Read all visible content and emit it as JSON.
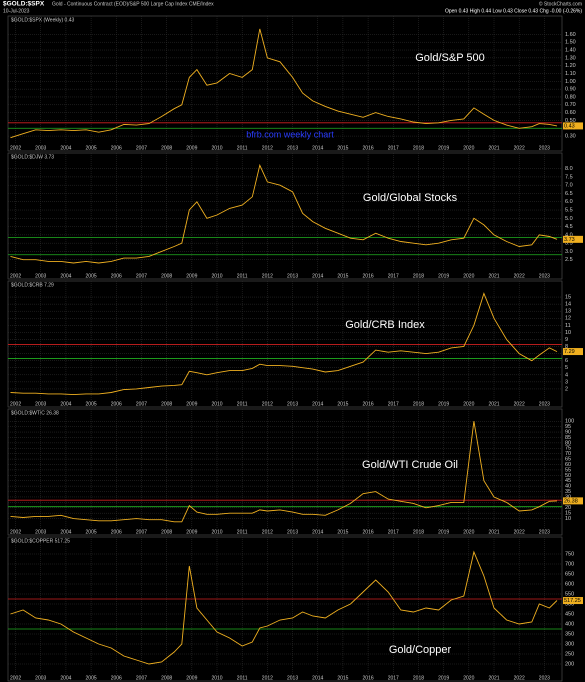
{
  "header": {
    "symbol": "$GOLD:$SPX",
    "description": "Gold - Continuous Contract (EOD)/S&P 500 Large Cap Index  CME/Index",
    "date": "10-Jul-2023",
    "quote": "Open 0.43  High 0.44  Low 0.43  Close 0.43  Chg -0.00 (-0.26%)",
    "source": "© StockCharts.com"
  },
  "chart_data": [
    {
      "type": "line",
      "label": "$GOLD:$SPX (Weekly) 0.43",
      "annotation": "Gold/S&P 500",
      "note": "bfrb.com weekly chart",
      "color": "#f0b020",
      "grid": true,
      "last_value": 0.43,
      "reference_lines": [
        {
          "value": 0.47,
          "color": "#d02020"
        },
        {
          "value": 0.4,
          "color": "#20b020"
        }
      ],
      "x": [
        2001.8,
        2002.3,
        2002.8,
        2003.3,
        2003.8,
        2004.3,
        2004.8,
        2005.3,
        2005.8,
        2006.3,
        2006.8,
        2007.3,
        2007.8,
        2008.3,
        2008.6,
        2008.9,
        2009.2,
        2009.6,
        2010.0,
        2010.5,
        2011.0,
        2011.4,
        2011.7,
        2012.0,
        2012.5,
        2013.0,
        2013.4,
        2013.8,
        2014.3,
        2014.8,
        2015.3,
        2015.8,
        2016.3,
        2016.8,
        2017.3,
        2017.8,
        2018.3,
        2018.8,
        2019.3,
        2019.8,
        2020.2,
        2020.6,
        2021.0,
        2021.5,
        2022.0,
        2022.5,
        2022.8,
        2023.2,
        2023.5
      ],
      "values": [
        0.28,
        0.33,
        0.38,
        0.37,
        0.38,
        0.37,
        0.38,
        0.35,
        0.38,
        0.45,
        0.44,
        0.46,
        0.55,
        0.65,
        0.7,
        1.05,
        1.15,
        0.95,
        0.98,
        1.1,
        1.05,
        1.15,
        1.67,
        1.3,
        1.25,
        1.05,
        0.85,
        0.75,
        0.68,
        0.62,
        0.58,
        0.54,
        0.6,
        0.55,
        0.52,
        0.48,
        0.46,
        0.47,
        0.5,
        0.52,
        0.66,
        0.58,
        0.5,
        0.44,
        0.4,
        0.42,
        0.46,
        0.45,
        0.43
      ],
      "xlim": [
        2001.7,
        2023.7
      ],
      "xticks": [
        2002,
        2003,
        2004,
        2005,
        2006,
        2007,
        2008,
        2009,
        2010,
        2011,
        2012,
        2013,
        2014,
        2015,
        2016,
        2017,
        2018,
        2019,
        2020,
        2021,
        2022,
        2023
      ],
      "ylim": [
        0.25,
        1.72
      ],
      "yticks": [
        {
          "value": 0.3,
          "label": "0.30"
        },
        {
          "value": 0.4,
          "label": "0.40"
        },
        {
          "value": 0.5,
          "label": "0.50"
        },
        {
          "value": 0.6,
          "label": "0.60"
        },
        {
          "value": 0.7,
          "label": "0.70"
        },
        {
          "value": 0.8,
          "label": "0.80"
        },
        {
          "value": 0.9,
          "label": "0.90"
        },
        {
          "value": 1.0,
          "label": "1.00"
        },
        {
          "value": 1.1,
          "label": "1.10"
        },
        {
          "value": 1.2,
          "label": "1.20"
        },
        {
          "value": 1.3,
          "label": "1.30"
        },
        {
          "value": 1.4,
          "label": "1.40"
        },
        {
          "value": 1.5,
          "label": "1.50"
        },
        {
          "value": 1.6,
          "label": "1.60"
        }
      ]
    },
    {
      "type": "line",
      "label": "$GOLD:$DJW 3.73",
      "annotation": "Gold/Global Stocks",
      "color": "#f0b020",
      "grid": true,
      "last_value": 3.73,
      "reference_lines": [
        {
          "value": 3.85,
          "color": "#20b020"
        },
        {
          "value": 2.8,
          "color": "#20b020"
        }
      ],
      "x": [
        2001.8,
        2002.3,
        2002.8,
        2003.3,
        2003.8,
        2004.3,
        2004.8,
        2005.3,
        2005.8,
        2006.3,
        2006.8,
        2007.3,
        2007.8,
        2008.3,
        2008.6,
        2008.9,
        2009.2,
        2009.6,
        2010.0,
        2010.5,
        2011.0,
        2011.4,
        2011.7,
        2012.0,
        2012.5,
        2013.0,
        2013.4,
        2013.8,
        2014.3,
        2014.8,
        2015.3,
        2015.8,
        2016.3,
        2016.8,
        2017.3,
        2017.8,
        2018.3,
        2018.8,
        2019.3,
        2019.8,
        2020.2,
        2020.6,
        2021.0,
        2021.5,
        2022.0,
        2022.5,
        2022.8,
        2023.2,
        2023.5
      ],
      "values": [
        2.7,
        2.5,
        2.5,
        2.4,
        2.4,
        2.3,
        2.4,
        2.3,
        2.4,
        2.6,
        2.6,
        2.7,
        3.0,
        3.3,
        3.5,
        5.5,
        6.0,
        5.0,
        5.2,
        5.6,
        5.8,
        6.3,
        8.2,
        7.2,
        7.0,
        6.6,
        5.3,
        4.8,
        4.4,
        4.1,
        3.8,
        3.7,
        4.1,
        3.8,
        3.6,
        3.5,
        3.4,
        3.5,
        3.7,
        3.8,
        5.0,
        4.6,
        4.0,
        3.6,
        3.3,
        3.4,
        4.0,
        3.9,
        3.73
      ],
      "xlim": [
        2001.7,
        2023.7
      ],
      "xticks": [
        2002,
        2003,
        2004,
        2005,
        2006,
        2007,
        2008,
        2009,
        2010,
        2011,
        2012,
        2013,
        2014,
        2015,
        2016,
        2017,
        2018,
        2019,
        2020,
        2021,
        2022,
        2023
      ],
      "ylim": [
        2.0,
        8.4
      ],
      "yticks": [
        2.5,
        {
          "value": 3.0,
          "label": "3.0"
        },
        3.5,
        {
          "value": 4.0,
          "label": "4.0"
        },
        4.5,
        {
          "value": 5.0,
          "label": "5.0"
        },
        5.5,
        {
          "value": 6.0,
          "label": "6.0"
        },
        6.5,
        {
          "value": 7.0,
          "label": "7.0"
        },
        7.5,
        {
          "value": 8.0,
          "label": "8.0"
        }
      ]
    },
    {
      "type": "line",
      "label": "$GOLD:$CRB 7.29",
      "annotation": "Gold/CRB Index",
      "color": "#f0b020",
      "grid": true,
      "last_value": 7.29,
      "reference_lines": [
        {
          "value": 8.3,
          "color": "#d02020"
        },
        {
          "value": 6.3,
          "color": "#20b020"
        }
      ],
      "x": [
        2001.8,
        2002.3,
        2002.8,
        2003.3,
        2003.8,
        2004.3,
        2004.8,
        2005.3,
        2005.8,
        2006.3,
        2006.8,
        2007.3,
        2007.8,
        2008.3,
        2008.6,
        2008.9,
        2009.2,
        2009.6,
        2010.0,
        2010.5,
        2011.0,
        2011.4,
        2011.7,
        2012.0,
        2012.5,
        2013.0,
        2013.4,
        2013.8,
        2014.3,
        2014.8,
        2015.3,
        2015.8,
        2016.3,
        2016.8,
        2017.3,
        2017.8,
        2018.3,
        2018.8,
        2019.3,
        2019.8,
        2020.2,
        2020.6,
        2021.0,
        2021.5,
        2022.0,
        2022.5,
        2022.8,
        2023.2,
        2023.5
      ],
      "values": [
        1.5,
        1.4,
        1.4,
        1.3,
        1.3,
        1.2,
        1.3,
        1.3,
        1.5,
        1.9,
        2.0,
        2.2,
        2.4,
        2.5,
        2.6,
        4.5,
        4.3,
        4.0,
        4.3,
        4.6,
        4.6,
        4.9,
        5.5,
        5.3,
        5.3,
        5.2,
        5.0,
        4.8,
        4.4,
        4.6,
        5.2,
        5.8,
        7.5,
        7.2,
        7.4,
        7.2,
        7.0,
        7.2,
        7.8,
        8.0,
        11.0,
        15.5,
        12.0,
        9.0,
        7.0,
        6.0,
        6.8,
        7.8,
        7.29
      ],
      "xlim": [
        2001.7,
        2023.7
      ],
      "xticks": [
        2002,
        2003,
        2004,
        2005,
        2006,
        2007,
        2008,
        2009,
        2010,
        2011,
        2012,
        2013,
        2014,
        2015,
        2016,
        2017,
        2018,
        2019,
        2020,
        2021,
        2022,
        2023
      ],
      "ylim": [
        1,
        16
      ],
      "yticks": [
        2,
        3,
        4,
        5,
        6,
        7,
        8,
        9,
        10,
        11,
        12,
        13,
        14,
        15
      ]
    },
    {
      "type": "line",
      "label": "$GOLD:$WTIC 26.38",
      "annotation": "Gold/WTI Crude Oil",
      "color": "#f0b020",
      "grid": true,
      "last_value": 26.38,
      "reference_lines": [
        {
          "value": 27,
          "color": "#d02020"
        },
        {
          "value": 21,
          "color": "#20b020"
        }
      ],
      "x": [
        2001.8,
        2002.3,
        2002.8,
        2003.3,
        2003.8,
        2004.3,
        2004.8,
        2005.3,
        2005.8,
        2006.3,
        2006.8,
        2007.3,
        2007.8,
        2008.3,
        2008.6,
        2008.9,
        2009.2,
        2009.6,
        2010.0,
        2010.5,
        2011.0,
        2011.4,
        2011.7,
        2012.0,
        2012.5,
        2013.0,
        2013.4,
        2013.8,
        2014.3,
        2014.8,
        2015.3,
        2015.8,
        2016.3,
        2016.8,
        2017.3,
        2017.8,
        2018.3,
        2018.8,
        2019.3,
        2019.8,
        2020.2,
        2020.6,
        2021.0,
        2021.5,
        2022.0,
        2022.5,
        2022.8,
        2023.2,
        2023.5
      ],
      "values": [
        12,
        11,
        12,
        12,
        13,
        10,
        9,
        8,
        8,
        9,
        10,
        9,
        9,
        7,
        7,
        22,
        16,
        14,
        14,
        15,
        15,
        15,
        18,
        17,
        18,
        16,
        14,
        14,
        13,
        18,
        24,
        33,
        35,
        28,
        26,
        24,
        20,
        22,
        25,
        25,
        100,
        45,
        30,
        25,
        17,
        18,
        21,
        26,
        26.38
      ],
      "xlim": [
        2001.7,
        2023.7
      ],
      "xticks": [
        2002,
        2003,
        2004,
        2005,
        2006,
        2007,
        2008,
        2009,
        2010,
        2011,
        2012,
        2013,
        2014,
        2015,
        2016,
        2017,
        2018,
        2019,
        2020,
        2021,
        2022,
        2023
      ],
      "ylim": [
        5,
        103
      ],
      "yticks": [
        10,
        15,
        20,
        25,
        30,
        35,
        40,
        45,
        50,
        55,
        60,
        65,
        70,
        75,
        80,
        85,
        90,
        95,
        100
      ]
    },
    {
      "type": "line",
      "label": "$GOLD:$COPPER 517.25",
      "annotation": "Gold/Copper",
      "color": "#f0b020",
      "grid": true,
      "last_value": 517.25,
      "reference_lines": [
        {
          "value": 525,
          "color": "#d02020"
        },
        {
          "value": 375,
          "color": "#20b020"
        }
      ],
      "x": [
        2001.8,
        2002.3,
        2002.8,
        2003.3,
        2003.8,
        2004.3,
        2004.8,
        2005.3,
        2005.8,
        2006.3,
        2006.8,
        2007.3,
        2007.8,
        2008.3,
        2008.6,
        2008.9,
        2009.2,
        2009.6,
        2010.0,
        2010.5,
        2011.0,
        2011.4,
        2011.7,
        2012.0,
        2012.5,
        2013.0,
        2013.4,
        2013.8,
        2014.3,
        2014.8,
        2015.3,
        2015.8,
        2016.3,
        2016.8,
        2017.3,
        2017.8,
        2018.3,
        2018.8,
        2019.3,
        2019.8,
        2020.2,
        2020.6,
        2021.0,
        2021.5,
        2022.0,
        2022.5,
        2022.8,
        2023.2,
        2023.5
      ],
      "values": [
        450,
        470,
        430,
        420,
        400,
        360,
        330,
        300,
        280,
        240,
        220,
        200,
        210,
        260,
        300,
        690,
        480,
        420,
        360,
        330,
        290,
        310,
        380,
        390,
        420,
        430,
        460,
        440,
        430,
        470,
        500,
        560,
        620,
        560,
        470,
        460,
        480,
        470,
        520,
        540,
        760,
        640,
        480,
        420,
        400,
        410,
        500,
        480,
        517.25
      ],
      "xlim": [
        2001.7,
        2023.7
      ],
      "xticks": [
        2002,
        2003,
        2004,
        2005,
        2006,
        2007,
        2008,
        2009,
        2010,
        2011,
        2012,
        2013,
        2014,
        2015,
        2016,
        2017,
        2018,
        2019,
        2020,
        2021,
        2022,
        2023
      ],
      "ylim": [
        170,
        790
      ],
      "yticks": [
        200,
        250,
        300,
        350,
        400,
        450,
        500,
        550,
        600,
        650,
        700,
        750
      ]
    }
  ]
}
